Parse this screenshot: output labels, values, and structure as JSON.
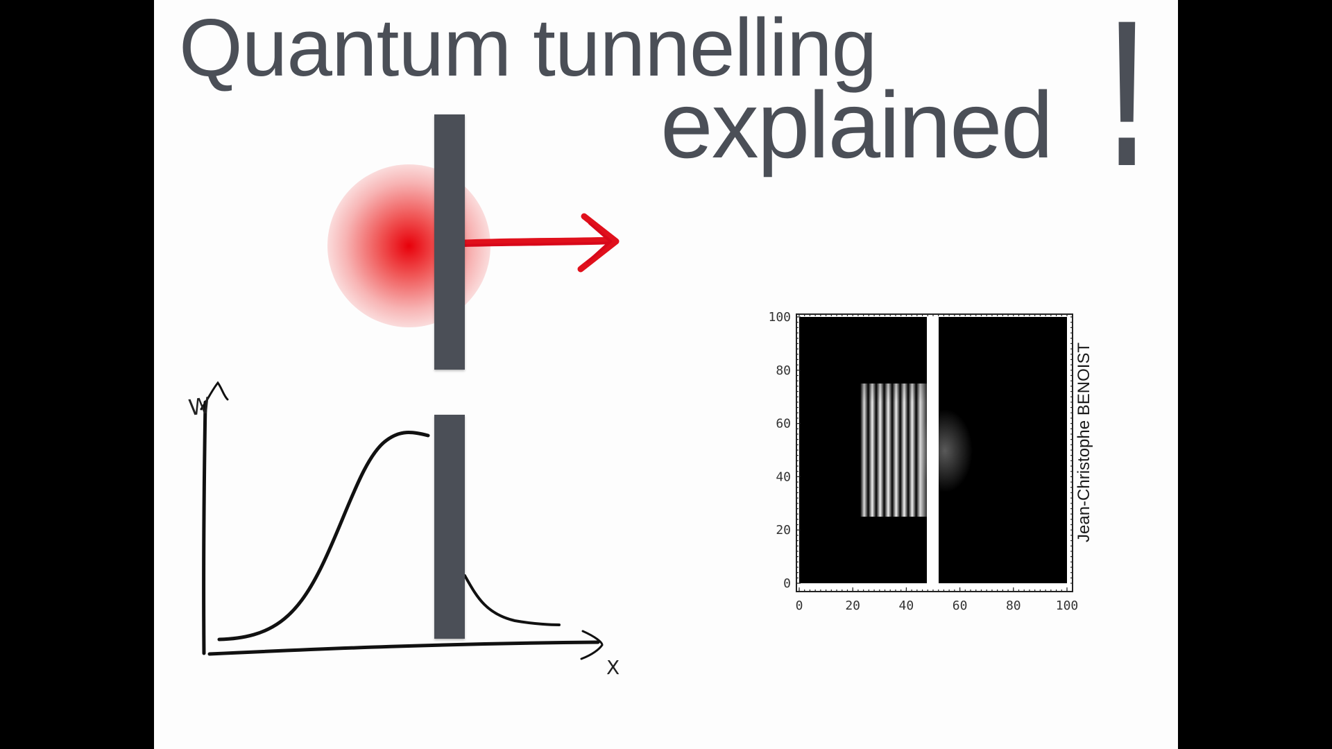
{
  "title": {
    "line1": "Quantum tunnelling",
    "line2": "explained",
    "exclamation": "!"
  },
  "sketch": {
    "y_axis_label": "W",
    "x_axis_label": "X"
  },
  "simulation_plot": {
    "credit": "Jean-Christophe BENOIST",
    "x_ticks": [
      "0",
      "20",
      "40",
      "60",
      "80",
      "100"
    ],
    "y_ticks": [
      "0",
      "20",
      "40",
      "60",
      "80",
      "100"
    ]
  },
  "colors": {
    "background": "#000000",
    "slide": "#fdfdfd",
    "title": "#4b4f57",
    "barrier": "#4b4f57",
    "arrow": "#e0101c"
  }
}
